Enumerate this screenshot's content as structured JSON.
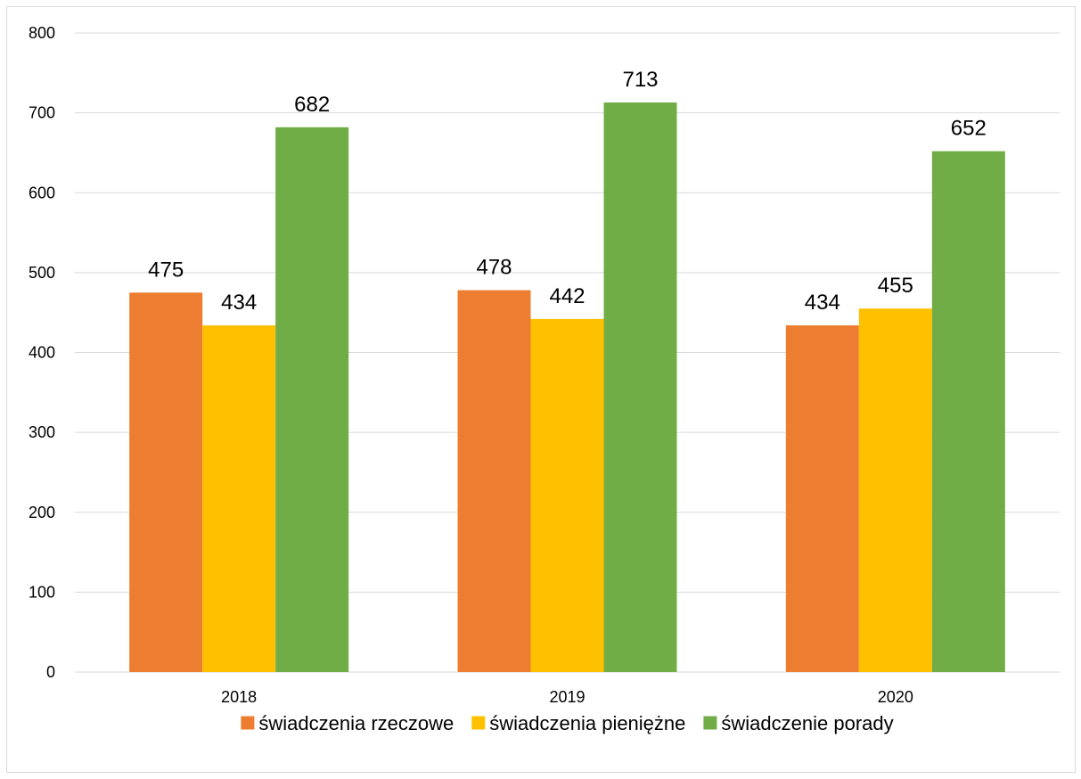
{
  "chart_data": {
    "type": "bar",
    "title": "",
    "xlabel": "",
    "ylabel": "",
    "categories": [
      "2018",
      "2019",
      "2020"
    ],
    "series": [
      {
        "name": "świadczenia rzeczowe",
        "color": "#ED7D31",
        "values": [
          475,
          478,
          434
        ]
      },
      {
        "name": "świadczenia pieniężne",
        "color": "#FFC000",
        "values": [
          434,
          442,
          455
        ]
      },
      {
        "name": "świadczenie porady",
        "color": "#70AD47",
        "values": [
          682,
          713,
          652
        ]
      }
    ],
    "ylim": [
      0,
      800
    ],
    "yticks": [
      0,
      100,
      200,
      300,
      400,
      500,
      600,
      700,
      800
    ],
    "grid": true,
    "gridline_color": "#d9d9d9",
    "legend_position": "bottom",
    "data_labels": true
  }
}
